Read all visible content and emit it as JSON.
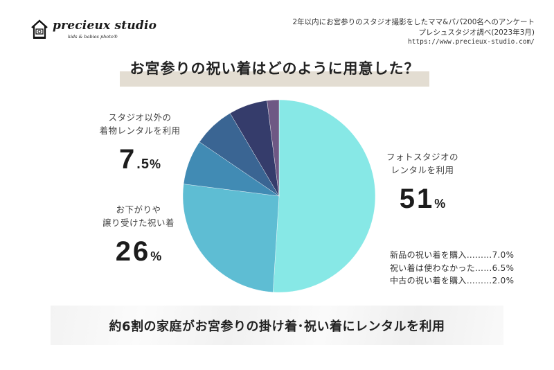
{
  "logo": {
    "name": "precieux studio",
    "tagline": "kids & babies photo®",
    "icon": "house-camera-icon"
  },
  "source": {
    "line1": "2年以内にお宮参りのスタジオ撮影をしたママ&パパ200名へのアンケート",
    "line2": "プレシュスタジオ調べ(2023年3月)",
    "url": "https://www.precieux-studio.com/"
  },
  "title": "お宮参りの祝い着はどのように用意した？",
  "labels": {
    "studio": {
      "line1": "フォトスタジオの",
      "line2": "レンタルを利用",
      "value": "51",
      "unit": "%"
    },
    "kimono": {
      "line1": "スタジオ以外の",
      "line2": "着物レンタルを利用",
      "value_int": "7",
      "value_dec": ".5",
      "unit": "%"
    },
    "hand": {
      "line1": "お下がりや",
      "line2": "譲り受けた祝い着",
      "value": "26",
      "unit": "%"
    }
  },
  "others": [
    {
      "label": "新品の祝い着を購入",
      "dots": "………",
      "value": "7.0%"
    },
    {
      "label": "祝い着は使わなかった",
      "dots": "……",
      "value": "6.5%"
    },
    {
      "label": "中古の祝い着を購入",
      "dots": "………",
      "value": "2.0%"
    }
  ],
  "banner": "約6割の家庭がお宮参りの掛け着･祝い着にレンタルを利用",
  "colors": {
    "studio": "#87e8e6",
    "hand": "#5ebdd3",
    "kimono": "#418bb4",
    "new": "#3a6593",
    "none": "#353c6b",
    "used": "#6e5884",
    "title_band": "#e3ddd2"
  },
  "chart_data": {
    "type": "pie",
    "title": "お宮参りの祝い着はどのように用意した？",
    "subtitle": "2年以内にお宮参りのスタジオ撮影をしたママ&パパ200名へのアンケート",
    "start_angle": "12 o'clock, clockwise",
    "categories": [
      "フォトスタジオのレンタルを利用",
      "お下がりや譲り受けた祝い着",
      "スタジオ以外の着物レンタルを利用",
      "新品の祝い着を購入",
      "祝い着は使わなかった",
      "中古の祝い着を購入"
    ],
    "values": [
      51,
      26,
      7.5,
      7.0,
      6.5,
      2.0
    ],
    "unit": "%",
    "colors": [
      "#87e8e6",
      "#5ebdd3",
      "#418bb4",
      "#3a6593",
      "#353c6b",
      "#6e5884"
    ],
    "annotation": "約6割の家庭がお宮参りの掛け着･祝い着にレンタルを利用"
  }
}
